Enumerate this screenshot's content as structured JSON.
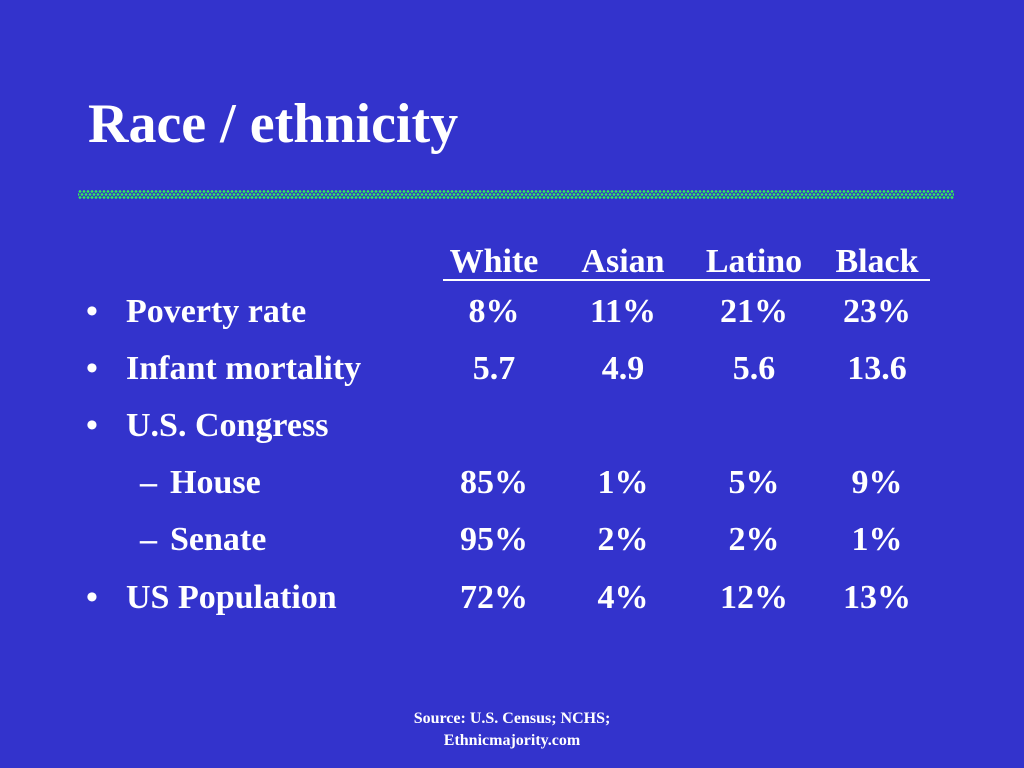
{
  "title": "Race / ethnicity",
  "columns": [
    "White",
    "Asian",
    "Latino",
    "Black"
  ],
  "rows": [
    {
      "label": "Poverty rate",
      "level": 1,
      "values": [
        "8%",
        "11%",
        "21%",
        "23%"
      ]
    },
    {
      "label": "Infant mortality",
      "level": 1,
      "values": [
        "5.7",
        "4.9",
        "5.6",
        "13.6"
      ]
    },
    {
      "label": "U.S. Congress",
      "level": 1,
      "values": []
    },
    {
      "label": "House",
      "level": 2,
      "values": [
        "85%",
        "1%",
        "5%",
        "9%"
      ]
    },
    {
      "label": "Senate",
      "level": 2,
      "values": [
        "95%",
        "2%",
        "2%",
        "1%"
      ]
    },
    {
      "label": "US Population",
      "level": 1,
      "values": [
        "72%",
        "4%",
        "12%",
        "13%"
      ]
    }
  ],
  "bullet_symbol": "•",
  "sub_bullet_symbol": "–",
  "source": {
    "line1": "Source: U.S. Census; NCHS;",
    "line2": "Ethnicmajority.com"
  },
  "colors": {
    "background": "#3333cc",
    "text": "#ffffff",
    "divider": "#33ee55"
  }
}
